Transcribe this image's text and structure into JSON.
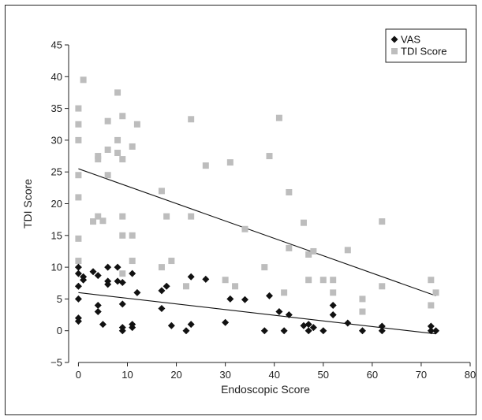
{
  "chart_data": {
    "type": "scatter",
    "title": "",
    "xlabel": "Endoscopic Score",
    "ylabel": "TDI Score",
    "xlim": [
      -2,
      80
    ],
    "ylim": [
      -5,
      45
    ],
    "xticks": [
      0,
      10,
      20,
      30,
      40,
      50,
      60,
      70,
      80
    ],
    "yticks": [
      -5,
      0,
      5,
      10,
      15,
      20,
      25,
      30,
      35,
      40,
      45
    ],
    "grid": false,
    "legend_position": "top-right",
    "series": [
      {
        "name": "TDI Score",
        "marker": "square",
        "color": "#bdbdbd",
        "points": [
          [
            0,
            35
          ],
          [
            0,
            32.5
          ],
          [
            0,
            30
          ],
          [
            0,
            24.5
          ],
          [
            0,
            21
          ],
          [
            0,
            14.5
          ],
          [
            0,
            11
          ],
          [
            1,
            39.5
          ],
          [
            3,
            17.2
          ],
          [
            4,
            27.5
          ],
          [
            4,
            27.0
          ],
          [
            4,
            18
          ],
          [
            5,
            17.3
          ],
          [
            6,
            33
          ],
          [
            6,
            28.5
          ],
          [
            6,
            24.5
          ],
          [
            8,
            37.5
          ],
          [
            8,
            30
          ],
          [
            8,
            28
          ],
          [
            9,
            33.8
          ],
          [
            9,
            27
          ],
          [
            9,
            18
          ],
          [
            9,
            15
          ],
          [
            9,
            9
          ],
          [
            11,
            29
          ],
          [
            11,
            15
          ],
          [
            11,
            11
          ],
          [
            12,
            32.5
          ],
          [
            17,
            22
          ],
          [
            17,
            10
          ],
          [
            18,
            18
          ],
          [
            19,
            11
          ],
          [
            22,
            7
          ],
          [
            23,
            33.3
          ],
          [
            23,
            18
          ],
          [
            26,
            26
          ],
          [
            30,
            8
          ],
          [
            31,
            26.5
          ],
          [
            32,
            7
          ],
          [
            34,
            16
          ],
          [
            38,
            10
          ],
          [
            39,
            27.5
          ],
          [
            41,
            33.5
          ],
          [
            42,
            6
          ],
          [
            43,
            21.8
          ],
          [
            43,
            13
          ],
          [
            46,
            17
          ],
          [
            47,
            12
          ],
          [
            47,
            8
          ],
          [
            48,
            12.5
          ],
          [
            50,
            8
          ],
          [
            52,
            8
          ],
          [
            52,
            6
          ],
          [
            55,
            12.7
          ],
          [
            58,
            5
          ],
          [
            58,
            3
          ],
          [
            62,
            17.2
          ],
          [
            62,
            7
          ],
          [
            72,
            8
          ],
          [
            72,
            4
          ],
          [
            73,
            6
          ]
        ],
        "trend": [
          [
            0,
            25.5
          ],
          [
            73,
            5.5
          ]
        ]
      },
      {
        "name": "VAS",
        "marker": "diamond",
        "color": "#111111",
        "points": [
          [
            0,
            10
          ],
          [
            0,
            9
          ],
          [
            0,
            7
          ],
          [
            0,
            5
          ],
          [
            0,
            2
          ],
          [
            0,
            1.5
          ],
          [
            1,
            8.5
          ],
          [
            1,
            8
          ],
          [
            3,
            9.3
          ],
          [
            4,
            8.7
          ],
          [
            4,
            4
          ],
          [
            4,
            3
          ],
          [
            5,
            1
          ],
          [
            6,
            10
          ],
          [
            6,
            7.8
          ],
          [
            6,
            7.3
          ],
          [
            8,
            10
          ],
          [
            8,
            7.8
          ],
          [
            9,
            7.6
          ],
          [
            9,
            4.2
          ],
          [
            9,
            0.5
          ],
          [
            9,
            0
          ],
          [
            11,
            9
          ],
          [
            11,
            1
          ],
          [
            11,
            0.5
          ],
          [
            12,
            6
          ],
          [
            17,
            6.3
          ],
          [
            17,
            3.5
          ],
          [
            18,
            7
          ],
          [
            19,
            0.8
          ],
          [
            22,
            0
          ],
          [
            23,
            8.5
          ],
          [
            23,
            1
          ],
          [
            26,
            8.1
          ],
          [
            30,
            1.3
          ],
          [
            31,
            5
          ],
          [
            34,
            4.9
          ],
          [
            38,
            0
          ],
          [
            39,
            5.5
          ],
          [
            41,
            3
          ],
          [
            42,
            0
          ],
          [
            43,
            2.5
          ],
          [
            46,
            0.8
          ],
          [
            47,
            1
          ],
          [
            47,
            0
          ],
          [
            48,
            0.5
          ],
          [
            50,
            0
          ],
          [
            52,
            4
          ],
          [
            52,
            2.5
          ],
          [
            55,
            1.2
          ],
          [
            58,
            0
          ],
          [
            62,
            0.7
          ],
          [
            62,
            0
          ],
          [
            72,
            0.7
          ],
          [
            72,
            0
          ],
          [
            73,
            0
          ]
        ],
        "trend": [
          [
            0,
            6
          ],
          [
            73,
            -0.5
          ]
        ]
      }
    ]
  }
}
